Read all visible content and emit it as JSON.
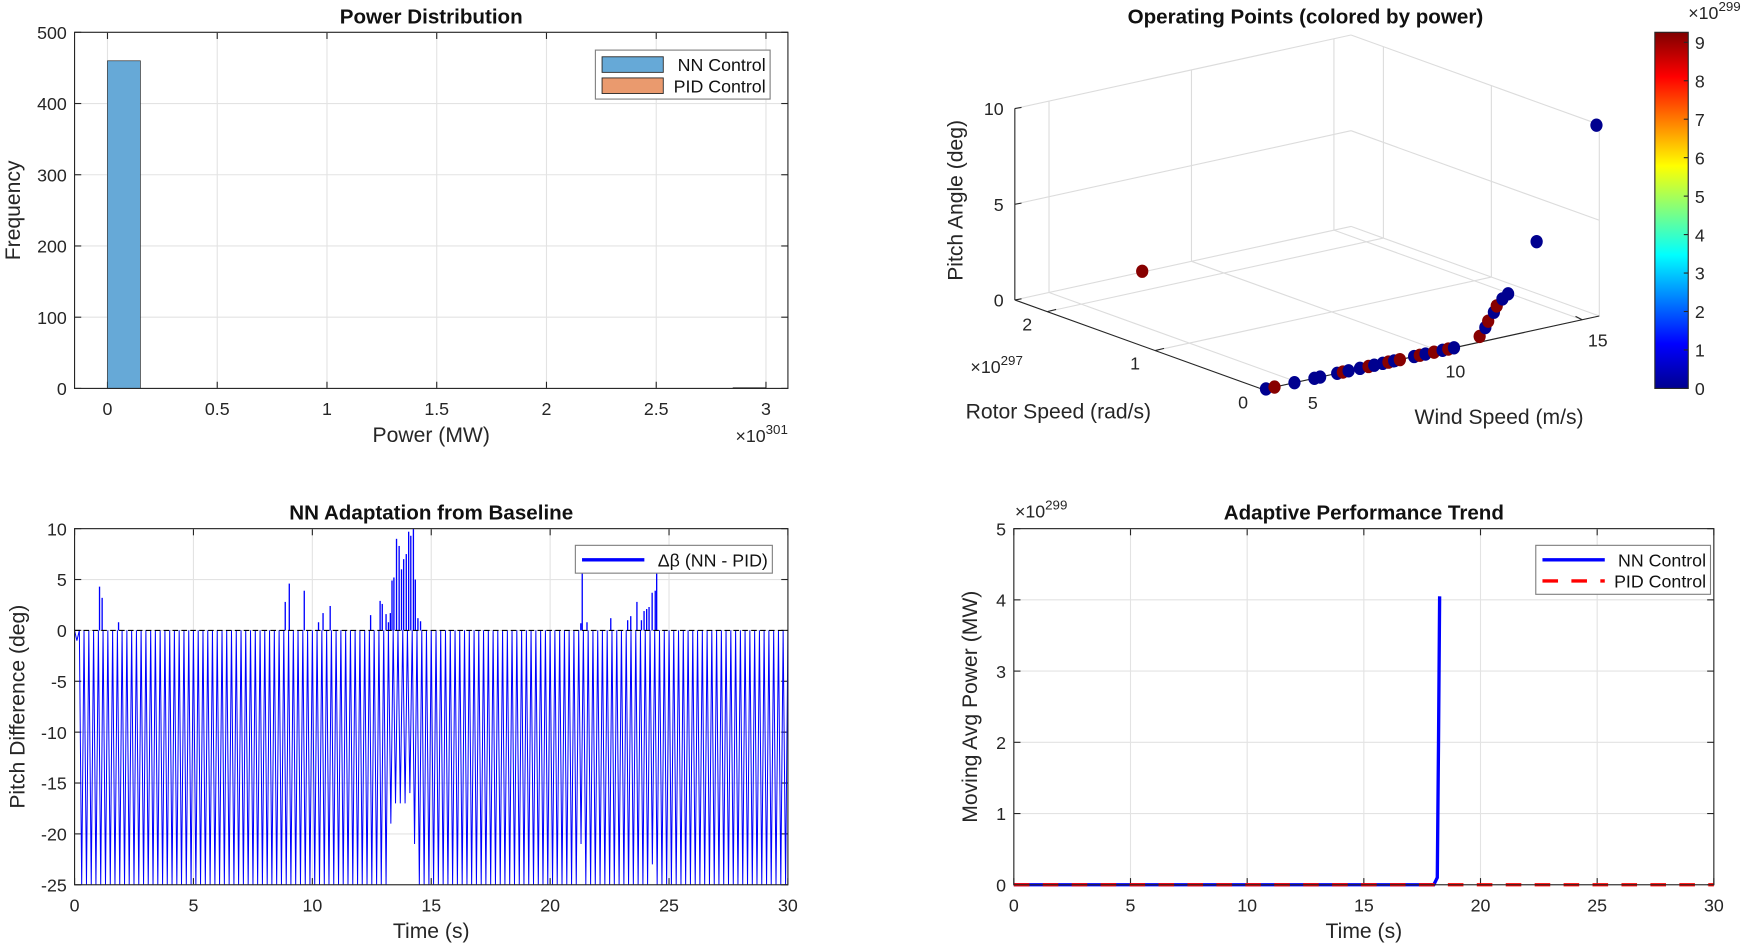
{
  "chart_data": [
    {
      "type": "bar",
      "subtype": "histogram",
      "title": "Power Distribution",
      "xlabel": "Power (MW)",
      "ylabel": "Frequency",
      "x_exponent": "301",
      "xlim": [
        -0.15,
        3.1
      ],
      "ylim": [
        0,
        500
      ],
      "xticks": [
        0,
        0.5,
        1,
        1.5,
        2,
        2.5,
        3
      ],
      "yticks": [
        0,
        100,
        200,
        300,
        400,
        500
      ],
      "grid": true,
      "legend_position": "top-right",
      "series": [
        {
          "name": "NN Control",
          "color": "#66a9d7",
          "bins": [
            [
              0,
              0.15,
              460
            ],
            [
              2.85,
              3.0,
              1
            ]
          ]
        },
        {
          "name": "PID Control",
          "color": "#ea9a6e",
          "bins": []
        }
      ]
    },
    {
      "type": "scatter",
      "subtype": "scatter3d",
      "title": "Operating Points (colored by power)",
      "xlabel": "Wind Speed (m/s)",
      "ylabel": "Rotor Speed (rad/s)",
      "zlabel": "Pitch Angle (deg)",
      "y_exponent": "297",
      "xlim": [
        3.8,
        15.6
      ],
      "ylim": [
        0,
        2.3
      ],
      "zlim": [
        0,
        10
      ],
      "xticks": [
        5,
        10,
        15
      ],
      "yticks": [
        0,
        1,
        2
      ],
      "zticks": [
        0,
        5,
        10
      ],
      "grid": true,
      "colormap": "jet",
      "colorbar": {
        "limits": [
          0,
          9.26
        ],
        "ticks": [
          0,
          1,
          2,
          3,
          4,
          5,
          6,
          7,
          8,
          9
        ],
        "exponent": "299",
        "position": "right"
      },
      "points_columns": [
        "wind_speed",
        "rotor_speed",
        "pitch_angle",
        "power"
      ],
      "points": [
        [
          3.9,
          0,
          0,
          0
        ],
        [
          4.2,
          0,
          0,
          9.2
        ],
        [
          4.9,
          0,
          0,
          0
        ],
        [
          5.6,
          0,
          0,
          0
        ],
        [
          5.8,
          0,
          0,
          0
        ],
        [
          6.4,
          0,
          0,
          0
        ],
        [
          6.6,
          0,
          0,
          9.2
        ],
        [
          6.8,
          0,
          0,
          0
        ],
        [
          7.2,
          0,
          0,
          0
        ],
        [
          7.5,
          0,
          0,
          9.2
        ],
        [
          7.7,
          0,
          0,
          0
        ],
        [
          8.0,
          0,
          0,
          0
        ],
        [
          8.2,
          0,
          0,
          9.2
        ],
        [
          8.4,
          0,
          0,
          0
        ],
        [
          8.6,
          0,
          0,
          9.2
        ],
        [
          9.1,
          0,
          0,
          0
        ],
        [
          9.3,
          0,
          0,
          9.2
        ],
        [
          9.5,
          0,
          0,
          0
        ],
        [
          9.8,
          0,
          0,
          9.2
        ],
        [
          10.1,
          0,
          0,
          0
        ],
        [
          10.3,
          0,
          0,
          9.2
        ],
        [
          10.5,
          0,
          0,
          0
        ],
        [
          11.4,
          0,
          0.3,
          9.2
        ],
        [
          11.6,
          0,
          0.7,
          0
        ],
        [
          11.7,
          0,
          1.0,
          9.2
        ],
        [
          11.9,
          0,
          1.4,
          0
        ],
        [
          12.0,
          0,
          1.7,
          9.2
        ],
        [
          12.2,
          0,
          2.0,
          0
        ],
        [
          12.4,
          0,
          2.2,
          0
        ],
        [
          13.4,
          0,
          4.6,
          0
        ],
        [
          15.5,
          0,
          10,
          0
        ],
        [
          3.8,
          1.12,
          3.9,
          9.2
        ]
      ]
    },
    {
      "type": "line",
      "title": "NN Adaptation from Baseline",
      "xlabel": "Time (s)",
      "ylabel": "Pitch Difference (deg)",
      "xlim": [
        0,
        30
      ],
      "ylim": [
        -25,
        10
      ],
      "xticks": [
        0,
        5,
        10,
        15,
        20,
        25,
        30
      ],
      "yticks": [
        -25,
        -20,
        -15,
        -10,
        -5,
        0,
        5,
        10
      ],
      "grid": true,
      "legend_position": "top-right",
      "reference_line": {
        "y": 0,
        "style": "dashed",
        "color": "#000000"
      },
      "series": [
        {
          "name": "Δβ (NN - PID)",
          "color": "#0000ff",
          "oscillation_period": 0.2,
          "upper_level": 0,
          "lower_level": -25,
          "positive_spikes": [
            [
              1.05,
              4.3
            ],
            [
              1.16,
              3.2
            ],
            [
              1.85,
              0.8
            ],
            [
              8.86,
              2.8
            ],
            [
              9.03,
              4.6
            ],
            [
              9.66,
              3.9
            ],
            [
              10.26,
              0.8
            ],
            [
              10.45,
              1.7
            ],
            [
              10.75,
              2.4
            ],
            [
              12.45,
              1.5
            ],
            [
              12.85,
              2.9
            ],
            [
              12.94,
              2.6
            ],
            [
              13.1,
              1.6
            ],
            [
              13.2,
              0.8
            ],
            [
              13.28,
              1.7
            ],
            [
              13.35,
              4.9
            ],
            [
              13.43,
              5.2
            ],
            [
              13.54,
              9.0
            ],
            [
              13.65,
              8.3
            ],
            [
              13.75,
              6.0
            ],
            [
              13.84,
              7.0
            ],
            [
              13.95,
              7.5
            ],
            [
              14.05,
              9.7
            ],
            [
              14.14,
              9.3
            ],
            [
              14.25,
              10
            ],
            [
              14.33,
              5.0
            ],
            [
              14.44,
              1.2
            ],
            [
              14.55,
              0.9
            ],
            [
              21.29,
              0.7
            ],
            [
              21.35,
              5.8
            ],
            [
              21.55,
              0.8
            ],
            [
              22.55,
              1.2
            ],
            [
              23.26,
              1.0
            ],
            [
              23.39,
              1.4
            ],
            [
              23.65,
              2.8
            ],
            [
              23.84,
              1.0
            ],
            [
              23.95,
              1.9
            ],
            [
              24.06,
              2.1
            ],
            [
              24.16,
              2.3
            ],
            [
              24.29,
              3.7
            ],
            [
              24.42,
              3.9
            ],
            [
              24.48,
              5.8
            ]
          ],
          "shallow_troughs": [
            [
              0.1,
              -1
            ],
            [
              13.3,
              -19
            ],
            [
              13.4,
              -22
            ],
            [
              13.5,
              -17
            ],
            [
              13.6,
              -16
            ],
            [
              13.7,
              -17
            ],
            [
              13.8,
              -19
            ],
            [
              13.9,
              -17
            ],
            [
              14.0,
              -15
            ],
            [
              14.1,
              -16
            ],
            [
              14.2,
              -20
            ],
            [
              14.3,
              -21
            ],
            [
              21.3,
              -21
            ],
            [
              24.3,
              -23
            ]
          ]
        }
      ]
    },
    {
      "type": "line",
      "title": "Adaptive Performance Trend",
      "xlabel": "Time (s)",
      "ylabel": "Moving Avg Power (MW)",
      "y_exponent": "299",
      "xlim": [
        0,
        30
      ],
      "ylim": [
        0,
        5
      ],
      "xticks": [
        0,
        5,
        10,
        15,
        20,
        25,
        30
      ],
      "yticks": [
        0,
        1,
        2,
        3,
        4,
        5
      ],
      "grid": true,
      "legend_position": "top-right",
      "series": [
        {
          "name": "NN Control",
          "color": "#0000ff",
          "style": "solid",
          "x": [
            0,
            18.0,
            18.15,
            18.2,
            18.25
          ],
          "y": [
            0,
            0,
            0.1,
            2.0,
            4.05
          ]
        },
        {
          "name": "PID Control",
          "color": "#ff0000",
          "style": "dashed",
          "x": [
            0,
            30
          ],
          "y": [
            0,
            0
          ]
        }
      ]
    }
  ]
}
